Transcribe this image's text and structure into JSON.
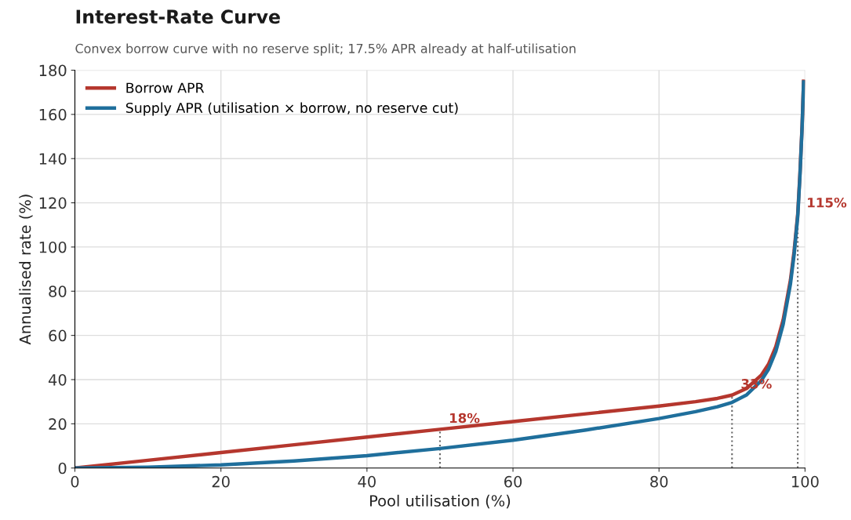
{
  "chart_data": {
    "type": "line",
    "title": "Interest-Rate Curve",
    "subtitle": "Convex borrow curve with no reserve split; 17.5% APR already at half-utilisation",
    "xlabel": "Pool utilisation (%)",
    "ylabel": "Annualised rate (%)",
    "x": [
      0,
      10,
      20,
      30,
      40,
      50,
      60,
      70,
      80,
      85,
      88,
      90,
      92,
      94,
      95,
      96,
      97,
      98,
      98.5,
      99,
      99.3,
      99.6,
      99.8
    ],
    "series": [
      {
        "name": "Borrow APR",
        "color": "#b5372e",
        "values": [
          0,
          3.5,
          7,
          10.5,
          14,
          17.5,
          21,
          24.5,
          28,
          30,
          31.5,
          33,
          36,
          42,
          47,
          55,
          67,
          85,
          98,
          115,
          133,
          155,
          175
        ]
      },
      {
        "name": "Supply APR (utilisation × borrow, no reserve cut)",
        "color": "#1f6f9c",
        "values": [
          0,
          0.35,
          1.4,
          3.2,
          5.6,
          8.8,
          12.6,
          17.2,
          22.4,
          25.5,
          27.7,
          29.7,
          33.1,
          39.5,
          44.7,
          52.8,
          65,
          83.3,
          96.5,
          113.9,
          132,
          154.4,
          174.7
        ]
      }
    ],
    "annotations": [
      {
        "text": "18%",
        "x": 50,
        "y": 17.5
      },
      {
        "text": "33%",
        "x": 90,
        "y": 33
      },
      {
        "text": "115%",
        "x": 99,
        "y": 115
      }
    ],
    "xlim": [
      0,
      100
    ],
    "xticks": [
      0,
      20,
      40,
      60,
      80,
      100
    ],
    "ylim": [
      0,
      180
    ],
    "yticks": [
      0,
      20,
      40,
      60,
      80,
      100,
      120,
      140,
      160,
      180
    ],
    "grid": true,
    "legend": "top left",
    "marker": "none",
    "line_style": "solid"
  }
}
